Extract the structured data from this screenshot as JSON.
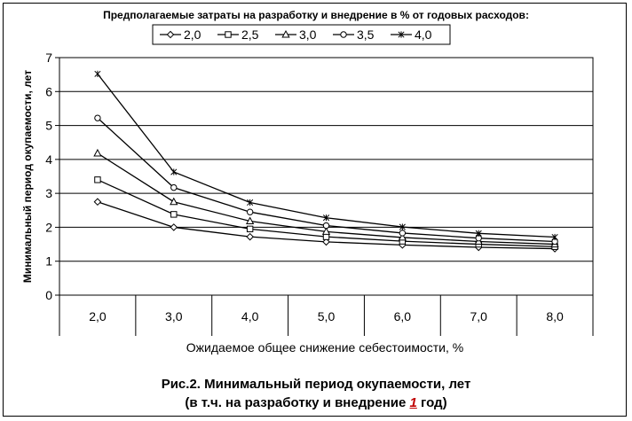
{
  "chart_data": {
    "type": "line",
    "legend_title": "Предполагаемые затраты на разработку и внедрение в % от годовых расходов:",
    "legend_placement": "top",
    "ylabel": "Минимальный период окупаемости, лет",
    "xlabel": "Ожидаемое общее снижение себестоимости, %",
    "ylim": [
      0,
      7
    ],
    "y_ticks": [
      "0",
      "1",
      "2",
      "3",
      "4",
      "5",
      "6",
      "7"
    ],
    "categories": [
      "2,0",
      "3,0",
      "4,0",
      "5,0",
      "6,0",
      "7,0",
      "8,0"
    ],
    "x": [
      2,
      3,
      4,
      5,
      6,
      7,
      8
    ],
    "grid": true,
    "series": [
      {
        "name": "2,0",
        "marker": "diamond",
        "values": [
          2.75,
          2.0,
          1.72,
          1.57,
          1.48,
          1.41,
          1.37
        ]
      },
      {
        "name": "2,5",
        "marker": "square",
        "values": [
          3.4,
          2.38,
          1.95,
          1.72,
          1.59,
          1.5,
          1.43
        ]
      },
      {
        "name": "3,0",
        "marker": "triangle",
        "values": [
          4.18,
          2.75,
          2.18,
          1.87,
          1.7,
          1.58,
          1.5
        ]
      },
      {
        "name": "3,5",
        "marker": "circle",
        "values": [
          5.22,
          3.17,
          2.45,
          2.05,
          1.83,
          1.68,
          1.58
        ]
      },
      {
        "name": "4,0",
        "marker": "star",
        "values": [
          6.52,
          3.63,
          2.73,
          2.28,
          2.01,
          1.82,
          1.71
        ]
      }
    ]
  },
  "caption": {
    "line1": "Рис.2. Минимальный период окупаемости, лет",
    "line2_pre": "(в т.ч. на разработку и внедрение ",
    "line2_value": "1",
    "line2_post": " год)"
  },
  "colors": {
    "highlight": "#c00000",
    "line": "#000000",
    "grid": "#000000"
  }
}
